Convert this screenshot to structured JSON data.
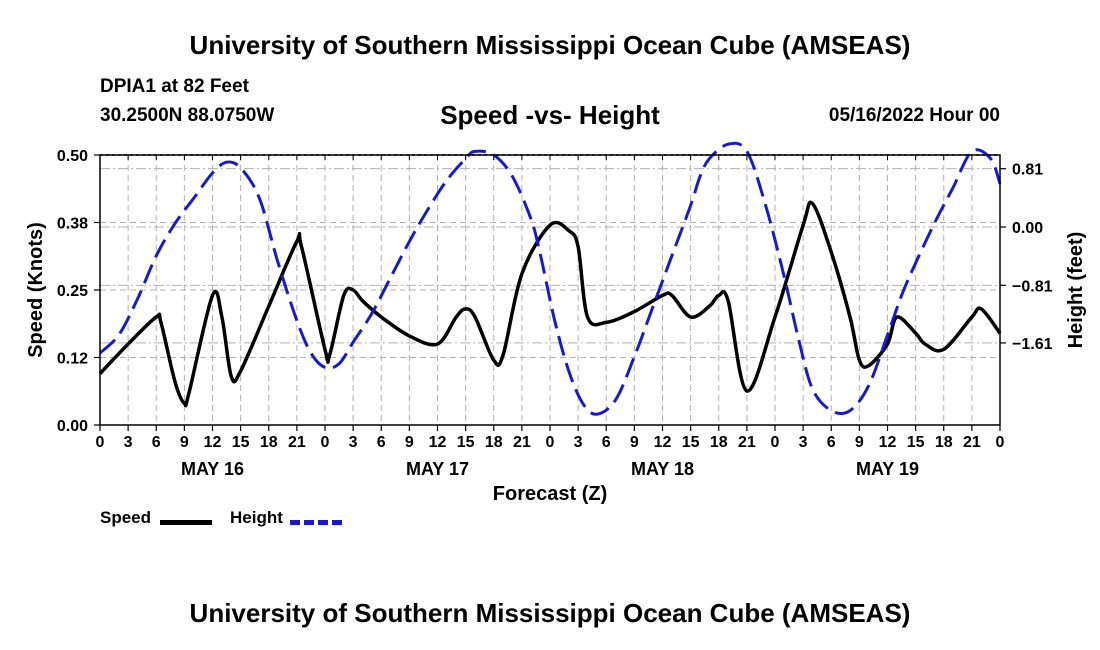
{
  "header": {
    "title": "University of Southern Mississippi Ocean Cube (AMSEAS)",
    "station": "DPIA1 at 82 Feet",
    "coords": "30.2500N  88.0750W",
    "subtitle": "Speed -vs- Height",
    "run_time": "05/16/2022 Hour 00"
  },
  "footer": {
    "title": "University of Southern Mississippi Ocean Cube (AMSEAS)"
  },
  "legend": {
    "speed_label": "Speed",
    "height_label": "Height"
  },
  "colors": {
    "speed": "#000000",
    "height": "#1a1acc",
    "grid": "#b0b0b0"
  },
  "chart_data": {
    "type": "line",
    "title": "Speed -vs- Height",
    "xlabel": "Forecast (Z)",
    "ylabel": "Speed (Knots)",
    "ylabel_right": "Height (feet)",
    "x_range": [
      0,
      96
    ],
    "x_ticks": [
      0,
      3,
      6,
      9,
      12,
      15,
      18,
      21,
      24,
      27,
      30,
      33,
      36,
      39,
      42,
      45,
      48,
      51,
      54,
      57,
      60,
      63,
      66,
      69,
      72,
      75,
      78,
      81,
      84,
      87,
      90,
      93,
      96
    ],
    "x_tick_labels": [
      "0",
      "3",
      "6",
      "9",
      "12",
      "15",
      "18",
      "21",
      "0",
      "3",
      "6",
      "9",
      "12",
      "15",
      "18",
      "21",
      "0",
      "3",
      "6",
      "9",
      "12",
      "15",
      "18",
      "21",
      "0",
      "3",
      "6",
      "9",
      "12",
      "15",
      "18",
      "21",
      "0"
    ],
    "day_labels": [
      {
        "x": 12,
        "label": "MAY 16"
      },
      {
        "x": 36,
        "label": "MAY 17"
      },
      {
        "x": 60,
        "label": "MAY 18"
      },
      {
        "x": 84,
        "label": "MAY 19"
      }
    ],
    "y_left": {
      "range": [
        0,
        0.5
      ],
      "ticks": [
        0.0,
        0.125,
        0.25,
        0.375,
        0.5
      ],
      "tick_labels": [
        "0.00",
        "0.12",
        "0.25",
        "0.38",
        "0.50"
      ]
    },
    "y_right": {
      "range": [
        -2.75,
        1.0
      ],
      "ticks": [
        -1.61,
        -0.81,
        0.0,
        0.81
      ],
      "tick_labels": [
        "−1.61",
        "−0.81",
        "0.00",
        "0.81"
      ]
    },
    "series": [
      {
        "name": "Speed",
        "axis": "left",
        "style": "solid",
        "x": [
          0,
          3,
          6,
          6.5,
          8,
          9,
          9.5,
          12,
          13,
          14,
          15,
          18,
          21,
          21.5,
          24,
          24.5,
          26,
          27,
          28,
          30,
          33,
          36,
          38,
          39,
          40,
          42,
          43,
          45,
          48,
          50,
          51,
          52,
          54,
          57,
          60,
          61,
          63,
          65,
          66,
          67,
          69,
          72,
          75,
          76,
          78,
          80,
          81,
          82,
          84,
          85,
          87,
          88,
          90,
          93,
          94,
          96
        ],
        "y": [
          0.095,
          0.15,
          0.2,
          0.19,
          0.08,
          0.04,
          0.06,
          0.24,
          0.2,
          0.09,
          0.1,
          0.22,
          0.34,
          0.33,
          0.14,
          0.13,
          0.24,
          0.25,
          0.23,
          0.2,
          0.165,
          0.15,
          0.2,
          0.215,
          0.2,
          0.12,
          0.13,
          0.28,
          0.37,
          0.36,
          0.33,
          0.2,
          0.19,
          0.21,
          0.24,
          0.24,
          0.2,
          0.22,
          0.24,
          0.23,
          0.063,
          0.2,
          0.37,
          0.41,
          0.32,
          0.2,
          0.12,
          0.11,
          0.15,
          0.2,
          0.17,
          0.15,
          0.14,
          0.2,
          0.215,
          0.17
        ]
      },
      {
        "name": "Height",
        "axis": "right",
        "style": "dashed",
        "x": [
          0,
          2,
          4,
          6,
          8,
          10,
          12,
          13.5,
          15,
          17,
          19,
          21,
          22.5,
          24,
          25.5,
          27,
          29,
          31,
          33,
          35,
          37,
          39,
          40,
          42,
          44,
          46,
          47,
          48.5,
          50,
          51.5,
          53,
          55,
          57,
          59,
          61,
          63,
          64,
          65,
          67,
          69,
          71,
          73,
          74.5,
          76,
          78,
          80,
          82,
          84,
          85.5,
          87,
          89,
          91,
          93,
          95,
          96
        ],
        "y": [
          -1.75,
          -1.5,
          -1.0,
          -0.4,
          0.05,
          0.4,
          0.75,
          0.9,
          0.82,
          0.4,
          -0.5,
          -1.3,
          -1.75,
          -1.95,
          -1.9,
          -1.6,
          -1.2,
          -0.7,
          -0.2,
          0.25,
          0.65,
          0.95,
          1.05,
          1.0,
          0.7,
          0.1,
          -0.4,
          -1.3,
          -2.0,
          -2.45,
          -2.6,
          -2.4,
          -1.8,
          -1.1,
          -0.4,
          0.3,
          0.7,
          0.95,
          1.15,
          1.05,
          0.3,
          -0.7,
          -1.55,
          -2.25,
          -2.55,
          -2.55,
          -2.2,
          -1.5,
          -0.95,
          -0.5,
          0.05,
          0.55,
          1.05,
          0.95,
          0.6
        ]
      }
    ]
  }
}
